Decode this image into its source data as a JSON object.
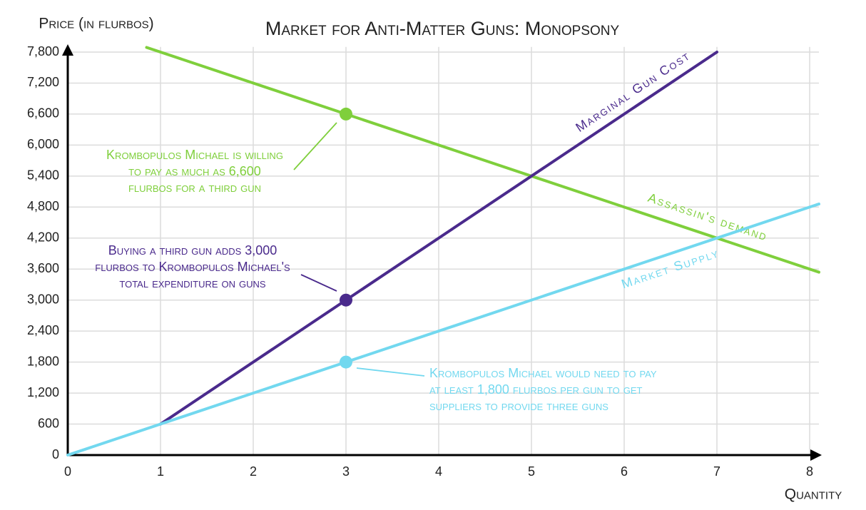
{
  "chart_data": {
    "type": "line",
    "title": "Market for Anti-Matter Guns: Monopsony",
    "y_label": "Price (in flurbos)",
    "x_label": "Quantity",
    "xlim": [
      0,
      8.1
    ],
    "ylim": [
      0,
      7900
    ],
    "xticks": [
      0,
      1,
      2,
      3,
      4,
      5,
      6,
      7,
      8
    ],
    "yticks": [
      0,
      600,
      {
        "value": 1200,
        "label": "1,200"
      },
      {
        "value": 1800,
        "label": "1,800"
      },
      {
        "value": 2400,
        "label": "2,400"
      },
      {
        "value": 3000,
        "label": "3,000"
      },
      {
        "value": 3600,
        "label": "3,600"
      },
      {
        "value": 4200,
        "label": "4,200"
      },
      {
        "value": 4800,
        "label": "4,800"
      },
      {
        "value": 5400,
        "label": "5,400"
      },
      {
        "value": 6000,
        "label": "6,000"
      },
      {
        "value": 6600,
        "label": "6,600"
      },
      {
        "value": 7200,
        "label": "7,200"
      },
      {
        "value": 7800,
        "label": "7,800"
      }
    ],
    "grid": true,
    "series": [
      {
        "name": "Assassin's demand",
        "color": "#7fcf3c",
        "x": [
          0.85,
          8.1
        ],
        "values": [
          7890,
          3540
        ]
      },
      {
        "name": "Marginal Gun Cost",
        "color": "#4a2a8c",
        "x": [
          1,
          7
        ],
        "values": [
          600,
          7800
        ]
      },
      {
        "name": "Market Supply",
        "color": "#72d8ef",
        "x": [
          0,
          8.1
        ],
        "values": [
          0,
          4860
        ]
      }
    ],
    "points": [
      {
        "x": 3,
        "value": 6600,
        "color": "#7fcf3c"
      },
      {
        "x": 3,
        "value": 3000,
        "color": "#4a2a8c"
      },
      {
        "x": 3,
        "value": 1800,
        "color": "#72d8ef"
      }
    ],
    "annotations": [
      {
        "color": "#7fcf3c",
        "lines": [
          "Krombopulos Michael is willing",
          "to pay as much as 6,600",
          "flurbos for a third gun"
        ]
      },
      {
        "color": "#4a2a8c",
        "lines": [
          "Buying a third gun adds 3,000",
          "flurbos to Krombopulos Michael's",
          "total expenditure on guns"
        ]
      },
      {
        "color": "#72d8ef",
        "lines": [
          "Krombopulos Michael would need to pay",
          "at least 1,800 flurbos per gun to get",
          "suppliers to provide three guns"
        ]
      }
    ]
  }
}
